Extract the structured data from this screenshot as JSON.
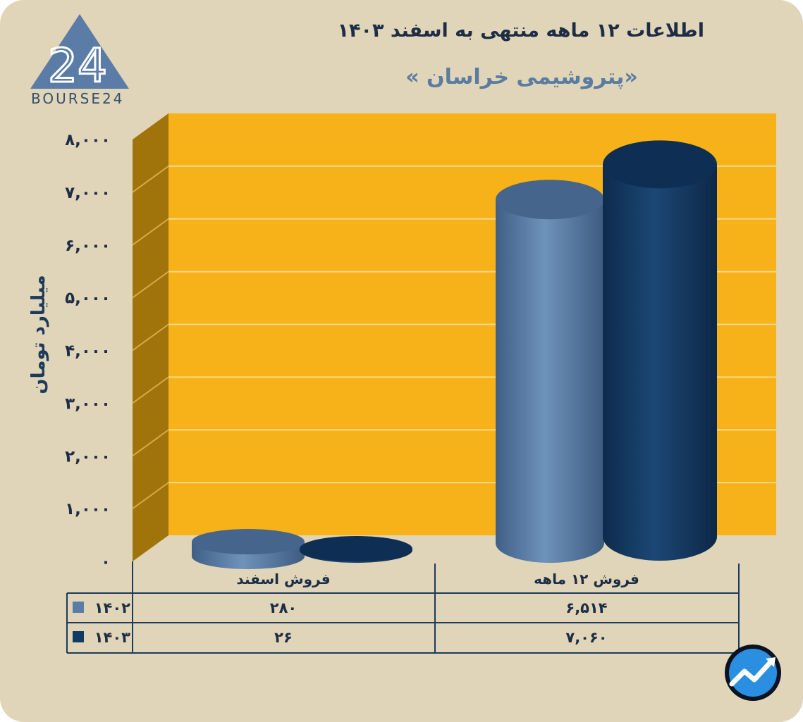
{
  "title": "اطلاعات ۱۲ ماهه منتهی به اسفند ۱۴۰۳",
  "subtitle": "«پتروشیمی خراسان »",
  "logo": {
    "text": "BOURSE24",
    "mark": "24"
  },
  "colors": {
    "wall": "#f7b219",
    "side_wall": "#a1740b",
    "series_1402": "#5b7ca6",
    "series_1403": "#133a62",
    "background": "#e0d5b8",
    "text": "#1c2d45"
  },
  "chart_data": {
    "type": "bar",
    "title": "اطلاعات ۱۲ ماهه منتهی به اسفند ۱۴۰۳",
    "subtitle": "«پتروشیمی خراسان »",
    "ylabel": "میلیارد تومان",
    "ylim": [
      0,
      8000
    ],
    "yticks": [
      "۸,۰۰۰",
      "۷,۰۰۰",
      "۶,۰۰۰",
      "۵,۰۰۰",
      "۴,۰۰۰",
      "۳,۰۰۰",
      "۲,۰۰۰",
      "۱,۰۰۰",
      "۰"
    ],
    "ytick_values": [
      8000,
      7000,
      6000,
      5000,
      4000,
      3000,
      2000,
      1000,
      0
    ],
    "categories": [
      "فروش اسفند",
      "فروش ۱۲ ماهه"
    ],
    "series": [
      {
        "name": "۱۴۰۲",
        "values": [
          280,
          6514
        ],
        "labels": [
          "۲۸۰",
          "۶,۵۱۴"
        ],
        "color": "#5b7ca6"
      },
      {
        "name": "۱۴۰۳",
        "values": [
          26,
          7060
        ],
        "labels": [
          "۲۶",
          "۷,۰۶۰"
        ],
        "color": "#133a62"
      }
    ],
    "grid": true,
    "legend": "table-left"
  }
}
